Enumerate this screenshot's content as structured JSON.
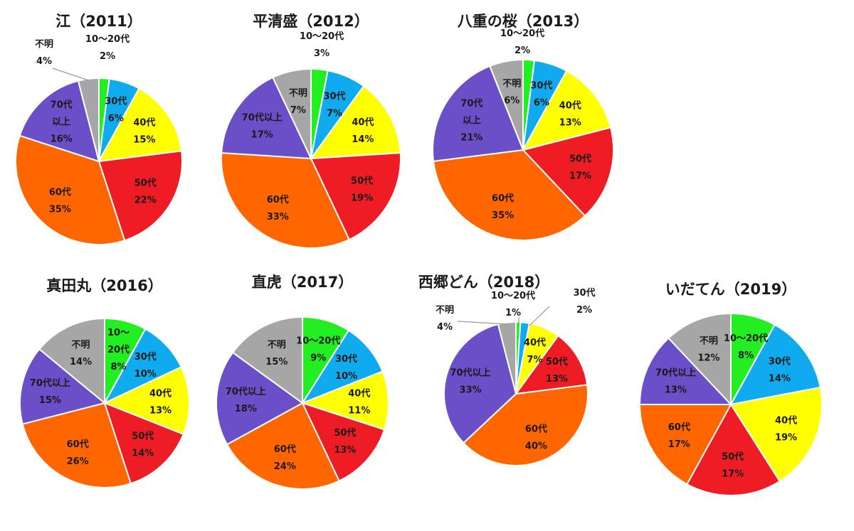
{
  "colors": {
    "10〜20代": "#22ee22",
    "30代": "#10aaee",
    "40代": "#ffff00",
    "50代": "#ee1c24",
    "60代": "#ff6600",
    "70代以上": "#6a4fc8",
    "不明": "#a6a6a6",
    "slice_border": "#ffffff",
    "leader_line": "#999999"
  },
  "chart_data": [
    {
      "type": "pie",
      "title": "江（2011）",
      "slices": [
        {
          "category": "10〜20代",
          "value": 2,
          "label": [
            "10〜20代",
            "2%"
          ]
        },
        {
          "category": "30代",
          "value": 6,
          "label": [
            "30代",
            "6%"
          ]
        },
        {
          "category": "40代",
          "value": 15,
          "label": [
            "40代",
            "15%"
          ]
        },
        {
          "category": "50代",
          "value": 22,
          "label": [
            "50代",
            "22%"
          ]
        },
        {
          "category": "60代",
          "value": 35,
          "label": [
            "60代",
            "35%"
          ]
        },
        {
          "category": "70代以上",
          "value": 16,
          "label": [
            "70代",
            "以上",
            "16%"
          ]
        },
        {
          "category": "不明",
          "value": 4,
          "label": [
            "不明",
            "4%"
          ]
        }
      ]
    },
    {
      "type": "pie",
      "title": "平清盛（2012）",
      "slices": [
        {
          "category": "10〜20代",
          "value": 3,
          "label": [
            "10〜20代",
            "3%"
          ]
        },
        {
          "category": "30代",
          "value": 7,
          "label": [
            "30代",
            "7%"
          ]
        },
        {
          "category": "40代",
          "value": 14,
          "label": [
            "40代",
            "14%"
          ]
        },
        {
          "category": "50代",
          "value": 19,
          "label": [
            "50代",
            "19%"
          ]
        },
        {
          "category": "60代",
          "value": 33,
          "label": [
            "60代",
            "33%"
          ]
        },
        {
          "category": "70代以上",
          "value": 17,
          "label": [
            "70代以上",
            "17%"
          ]
        },
        {
          "category": "不明",
          "value": 7,
          "label": [
            "不明",
            "7%"
          ]
        }
      ]
    },
    {
      "type": "pie",
      "title": "八重の桜（2013）",
      "slices": [
        {
          "category": "10〜20代",
          "value": 2,
          "label": [
            "10〜20代",
            "2%"
          ]
        },
        {
          "category": "30代",
          "value": 6,
          "label": [
            "30代",
            "6%"
          ]
        },
        {
          "category": "40代",
          "value": 13,
          "label": [
            "40代",
            "13%"
          ]
        },
        {
          "category": "50代",
          "value": 17,
          "label": [
            "50代",
            "17%"
          ]
        },
        {
          "category": "60代",
          "value": 35,
          "label": [
            "60代",
            "35%"
          ]
        },
        {
          "category": "70代以上",
          "value": 21,
          "label": [
            "70代",
            "以上",
            "21%"
          ]
        },
        {
          "category": "不明",
          "value": 6,
          "label": [
            "不明",
            "6%"
          ]
        }
      ]
    },
    {
      "type": "pie",
      "title": "真田丸（2016）",
      "slices": [
        {
          "category": "10〜20代",
          "value": 8,
          "label": [
            "10〜",
            "20代",
            "8%"
          ]
        },
        {
          "category": "30代",
          "value": 10,
          "label": [
            "30代",
            "10%"
          ]
        },
        {
          "category": "40代",
          "value": 13,
          "label": [
            "40代",
            "13%"
          ]
        },
        {
          "category": "50代",
          "value": 14,
          "label": [
            "50代",
            "14%"
          ]
        },
        {
          "category": "60代",
          "value": 26,
          "label": [
            "60代",
            "26%"
          ]
        },
        {
          "category": "70代以上",
          "value": 15,
          "label": [
            "70代以上",
            "15%"
          ]
        },
        {
          "category": "不明",
          "value": 14,
          "label": [
            "不明",
            "14%"
          ]
        }
      ]
    },
    {
      "type": "pie",
      "title": "直虎（2017）",
      "slices": [
        {
          "category": "10〜20代",
          "value": 9,
          "label": [
            "10〜20代",
            "9%"
          ]
        },
        {
          "category": "30代",
          "value": 10,
          "label": [
            "30代",
            "10%"
          ]
        },
        {
          "category": "40代",
          "value": 11,
          "label": [
            "40代",
            "11%"
          ]
        },
        {
          "category": "50代",
          "value": 13,
          "label": [
            "50代",
            "13%"
          ]
        },
        {
          "category": "60代",
          "value": 24,
          "label": [
            "60代",
            "24%"
          ]
        },
        {
          "category": "70代以上",
          "value": 18,
          "label": [
            "70代以上",
            "18%"
          ]
        },
        {
          "category": "不明",
          "value": 15,
          "label": [
            "不明",
            "15%"
          ]
        }
      ]
    },
    {
      "type": "pie",
      "title": "西郷どん（2018）",
      "slices": [
        {
          "category": "10〜20代",
          "value": 1,
          "label": [
            "10〜20代",
            "1%"
          ]
        },
        {
          "category": "30代",
          "value": 2,
          "label": [
            "30代",
            "2%"
          ]
        },
        {
          "category": "40代",
          "value": 7,
          "label": [
            "40代",
            "7%"
          ]
        },
        {
          "category": "50代",
          "value": 13,
          "label": [
            "50代",
            "13%"
          ]
        },
        {
          "category": "60代",
          "value": 40,
          "label": [
            "60代",
            "40%"
          ]
        },
        {
          "category": "70代以上",
          "value": 33,
          "label": [
            "70代以上",
            "33%"
          ]
        },
        {
          "category": "不明",
          "value": 4,
          "label": [
            "不明",
            "4%"
          ]
        }
      ]
    },
    {
      "type": "pie",
      "title": "いだてん（2019）",
      "slices": [
        {
          "category": "10〜20代",
          "value": 8,
          "label": [
            "10〜20代",
            "8%"
          ]
        },
        {
          "category": "30代",
          "value": 14,
          "label": [
            "30代",
            "14%"
          ]
        },
        {
          "category": "40代",
          "value": 19,
          "label": [
            "40代",
            "19%"
          ]
        },
        {
          "category": "50代",
          "value": 17,
          "label": [
            "50代",
            "17%"
          ]
        },
        {
          "category": "60代",
          "value": 17,
          "label": [
            "60代",
            "17%"
          ]
        },
        {
          "category": "70代以上",
          "value": 13,
          "label": [
            "70代以上",
            "13%"
          ]
        },
        {
          "category": "不明",
          "value": 12,
          "label": [
            "不明",
            "12%"
          ]
        }
      ]
    }
  ]
}
